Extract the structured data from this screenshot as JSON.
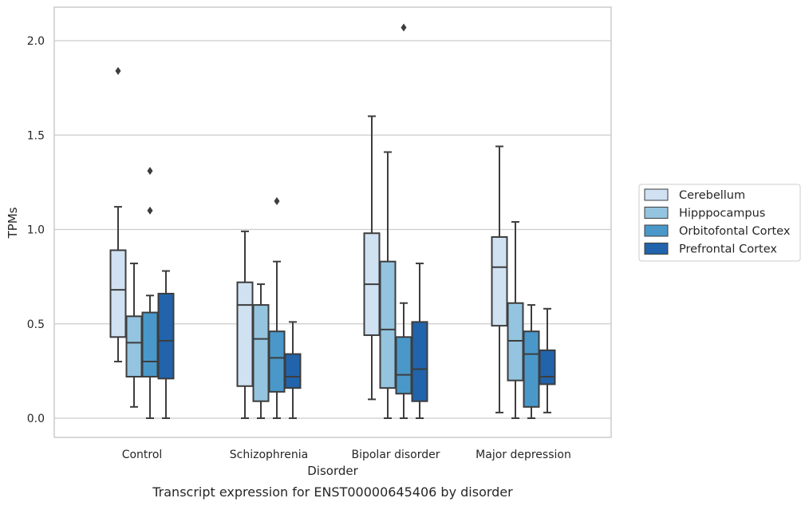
{
  "chart_data": {
    "type": "box",
    "title": "",
    "caption": "Transcript expression for ENST00000645406 by disorder",
    "xlabel": "Disorder",
    "ylabel": "TPMs",
    "ylim": [
      -0.1,
      2.18
    ],
    "yticks": [
      0.0,
      0.5,
      1.0,
      1.5,
      2.0
    ],
    "ytick_labels": [
      "0.0",
      "0.5",
      "1.0",
      "1.5",
      "2.0"
    ],
    "grid": true,
    "legend_position": "right",
    "categories": [
      "Control",
      "Schizophrenia",
      "Bipolar disorder",
      "Major depression"
    ],
    "series": [
      {
        "name": "Cerebellum",
        "color": "#d0e1f2",
        "boxes": [
          {
            "whisker_low": 0.3,
            "q1": 0.43,
            "median": 0.68,
            "q3": 0.89,
            "whisker_high": 1.12,
            "outliers": [
              1.84
            ]
          },
          {
            "whisker_low": 0.0,
            "q1": 0.17,
            "median": 0.6,
            "q3": 0.72,
            "whisker_high": 0.99,
            "outliers": []
          },
          {
            "whisker_low": 0.1,
            "q1": 0.44,
            "median": 0.71,
            "q3": 0.98,
            "whisker_high": 1.6,
            "outliers": []
          },
          {
            "whisker_low": 0.03,
            "q1": 0.49,
            "median": 0.8,
            "q3": 0.96,
            "whisker_high": 1.44,
            "outliers": []
          }
        ]
      },
      {
        "name": "Hipppocampus",
        "color": "#94c4df",
        "boxes": [
          {
            "whisker_low": 0.06,
            "q1": 0.22,
            "median": 0.4,
            "q3": 0.54,
            "whisker_high": 0.82,
            "outliers": []
          },
          {
            "whisker_low": 0.0,
            "q1": 0.09,
            "median": 0.42,
            "q3": 0.6,
            "whisker_high": 0.71,
            "outliers": []
          },
          {
            "whisker_low": 0.0,
            "q1": 0.16,
            "median": 0.47,
            "q3": 0.83,
            "whisker_high": 1.41,
            "outliers": []
          },
          {
            "whisker_low": 0.0,
            "q1": 0.2,
            "median": 0.41,
            "q3": 0.61,
            "whisker_high": 1.04,
            "outliers": []
          }
        ]
      },
      {
        "name": "Orbitofontal Cortex",
        "color": "#4a98c9",
        "boxes": [
          {
            "whisker_low": 0.0,
            "q1": 0.22,
            "median": 0.3,
            "q3": 0.56,
            "whisker_high": 0.65,
            "outliers": [
              1.1,
              1.31
            ]
          },
          {
            "whisker_low": 0.0,
            "q1": 0.14,
            "median": 0.32,
            "q3": 0.46,
            "whisker_high": 0.83,
            "outliers": [
              1.15
            ]
          },
          {
            "whisker_low": 0.0,
            "q1": 0.13,
            "median": 0.23,
            "q3": 0.43,
            "whisker_high": 0.61,
            "outliers": [
              2.07
            ]
          },
          {
            "whisker_low": 0.0,
            "q1": 0.06,
            "median": 0.34,
            "q3": 0.46,
            "whisker_high": 0.6,
            "outliers": []
          }
        ]
      },
      {
        "name": "Prefrontal Cortex",
        "color": "#2164ab",
        "boxes": [
          {
            "whisker_low": 0.0,
            "q1": 0.21,
            "median": 0.41,
            "q3": 0.66,
            "whisker_high": 0.78,
            "outliers": []
          },
          {
            "whisker_low": 0.0,
            "q1": 0.16,
            "median": 0.22,
            "q3": 0.34,
            "whisker_high": 0.51,
            "outliers": []
          },
          {
            "whisker_low": 0.0,
            "q1": 0.09,
            "median": 0.26,
            "q3": 0.51,
            "whisker_high": 0.82,
            "outliers": []
          },
          {
            "whisker_low": 0.03,
            "q1": 0.18,
            "median": 0.22,
            "q3": 0.36,
            "whisker_high": 0.58,
            "outliers": []
          }
        ]
      }
    ]
  }
}
